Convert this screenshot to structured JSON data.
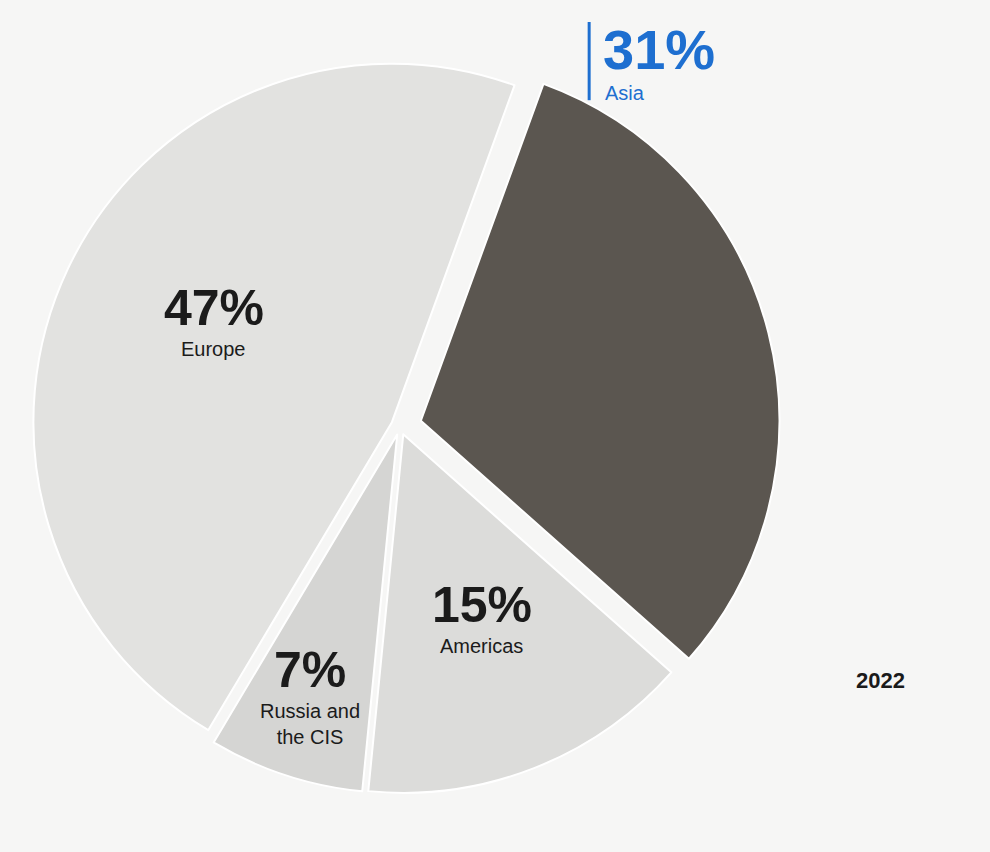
{
  "chart_data": {
    "type": "pie",
    "categories": [
      "Asia",
      "Americas",
      "Russia and the CIS",
      "Europe"
    ],
    "values": [
      31,
      15,
      7,
      47
    ],
    "value_labels": [
      "31%",
      "15%",
      "7%",
      "47%"
    ],
    "colors": [
      "#5b5650",
      "#dcdcda",
      "#d5d5d3",
      "#e2e2e0"
    ],
    "data_labels": true,
    "annotations": [
      "2022"
    ]
  }
}
